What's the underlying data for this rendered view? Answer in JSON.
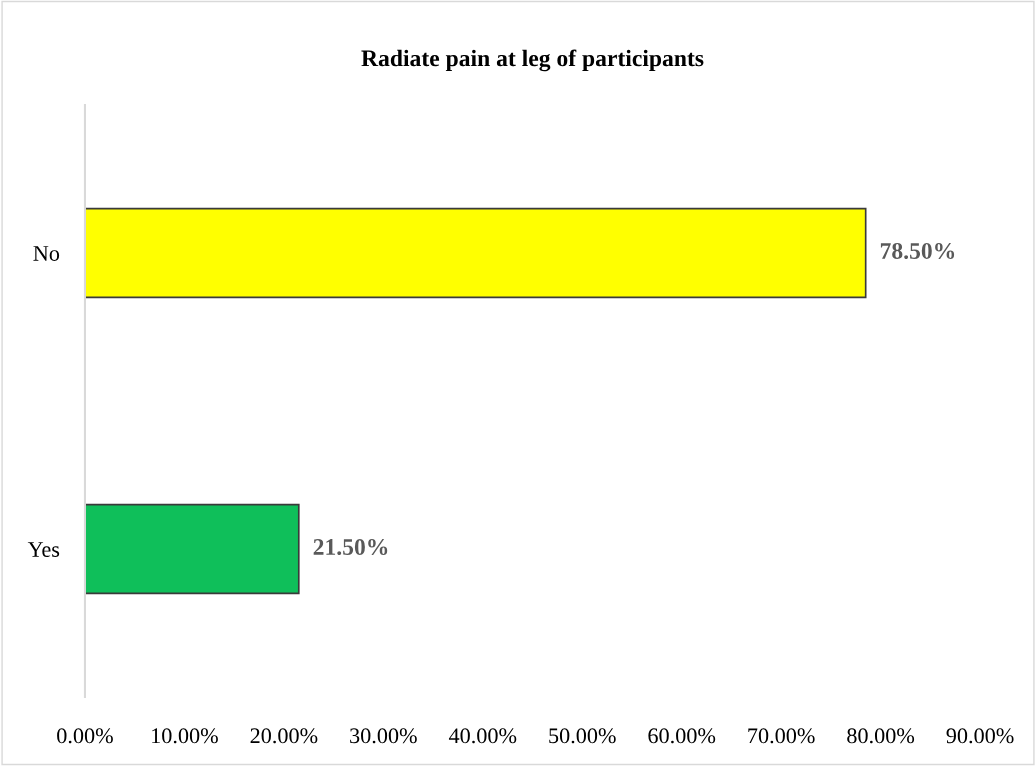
{
  "chart_data": {
    "type": "bar",
    "orientation": "horizontal",
    "title": "Radiate pain at leg of participants",
    "categories": [
      "No",
      "Yes"
    ],
    "values": [
      78.5,
      21.5
    ],
    "colors": [
      "#ffff00",
      "#0fbf5a"
    ],
    "value_labels": [
      "78.50%",
      "21.50%"
    ],
    "xlim": [
      0,
      90
    ],
    "xticks": [
      {
        "value": 0,
        "label": "0.00%"
      },
      {
        "value": 10,
        "label": "10.00%"
      },
      {
        "value": 20,
        "label": "20.00%"
      },
      {
        "value": 30,
        "label": "30.00%"
      },
      {
        "value": 40,
        "label": "40.00%"
      },
      {
        "value": 50,
        "label": "50.00%"
      },
      {
        "value": 60,
        "label": "60.00%"
      },
      {
        "value": 70,
        "label": "70.00%"
      },
      {
        "value": 80,
        "label": "80.00%"
      },
      {
        "value": 90,
        "label": "90.00%"
      }
    ],
    "grid": false,
    "legend": false
  }
}
